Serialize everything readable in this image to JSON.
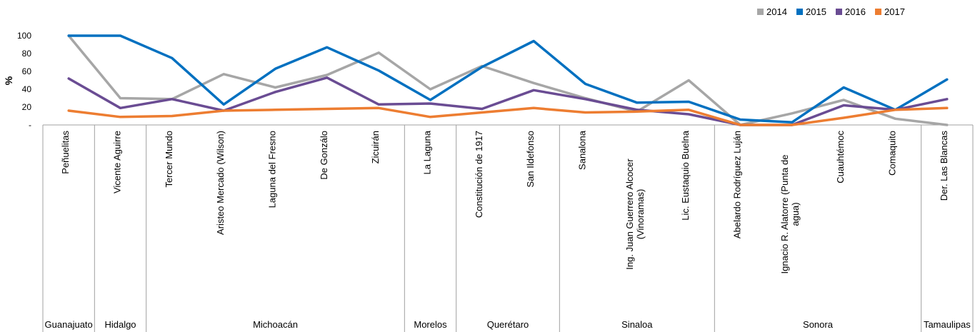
{
  "chart_data": {
    "type": "line",
    "ylabel": "%",
    "ylim": [
      0,
      100
    ],
    "yticks": [
      "-",
      "20",
      "40",
      "60",
      "80",
      "100"
    ],
    "categories": [
      "Peñuelitas",
      "Vicente Aguirre",
      "Tercer Mundo",
      "Aristeo Mercado (Wilson)",
      "Laguna del Fresno",
      "De Gonzálo",
      "Zicuirán",
      "La Laguna",
      "Constitución de 1917",
      "San Ildefonso",
      "Sanalona",
      "Ing. Juan Guerrero Alcocer (Vinoramas)",
      "Lic. Eustaquio Buelna",
      "Abelardo Rodríguez Luján",
      "Ignacio R. Alatorre (Punta de agua)",
      "Cuauhtémoc",
      "Comaquito",
      "Der. Las Blancas"
    ],
    "groups": [
      {
        "name": "Guanajuato",
        "count": 1
      },
      {
        "name": "Hidalgo",
        "count": 1
      },
      {
        "name": "Michoacán",
        "count": 5
      },
      {
        "name": "Morelos",
        "count": 1
      },
      {
        "name": "Querétaro",
        "count": 2
      },
      {
        "name": "Sinaloa",
        "count": 3
      },
      {
        "name": "Sonora",
        "count": 4
      },
      {
        "name": "Tamaulipas",
        "count": 1
      }
    ],
    "legend_position": "top-right",
    "grid": false,
    "series": [
      {
        "name": "2014",
        "color": "#a6a6a6",
        "values": [
          100,
          30,
          29,
          57,
          42,
          56,
          81,
          40,
          66,
          47,
          30,
          15,
          50,
          0,
          13,
          28,
          7,
          0
        ]
      },
      {
        "name": "2015",
        "color": "#0070c0",
        "values": [
          100,
          100,
          75,
          23,
          63,
          87,
          61,
          28,
          65,
          94,
          46,
          25,
          26,
          6,
          3,
          42,
          17,
          51
        ]
      },
      {
        "name": "2016",
        "color": "#6a4c93",
        "values": [
          52,
          19,
          29,
          16,
          37,
          53,
          23,
          24,
          18,
          39,
          29,
          17,
          12,
          0,
          0,
          22,
          17,
          29
        ]
      },
      {
        "name": "2017",
        "color": "#ed7d31",
        "values": [
          16,
          9,
          10,
          16,
          17,
          18,
          19,
          9,
          14,
          19,
          14,
          15,
          17,
          0,
          0,
          8,
          17,
          19
        ]
      }
    ]
  }
}
